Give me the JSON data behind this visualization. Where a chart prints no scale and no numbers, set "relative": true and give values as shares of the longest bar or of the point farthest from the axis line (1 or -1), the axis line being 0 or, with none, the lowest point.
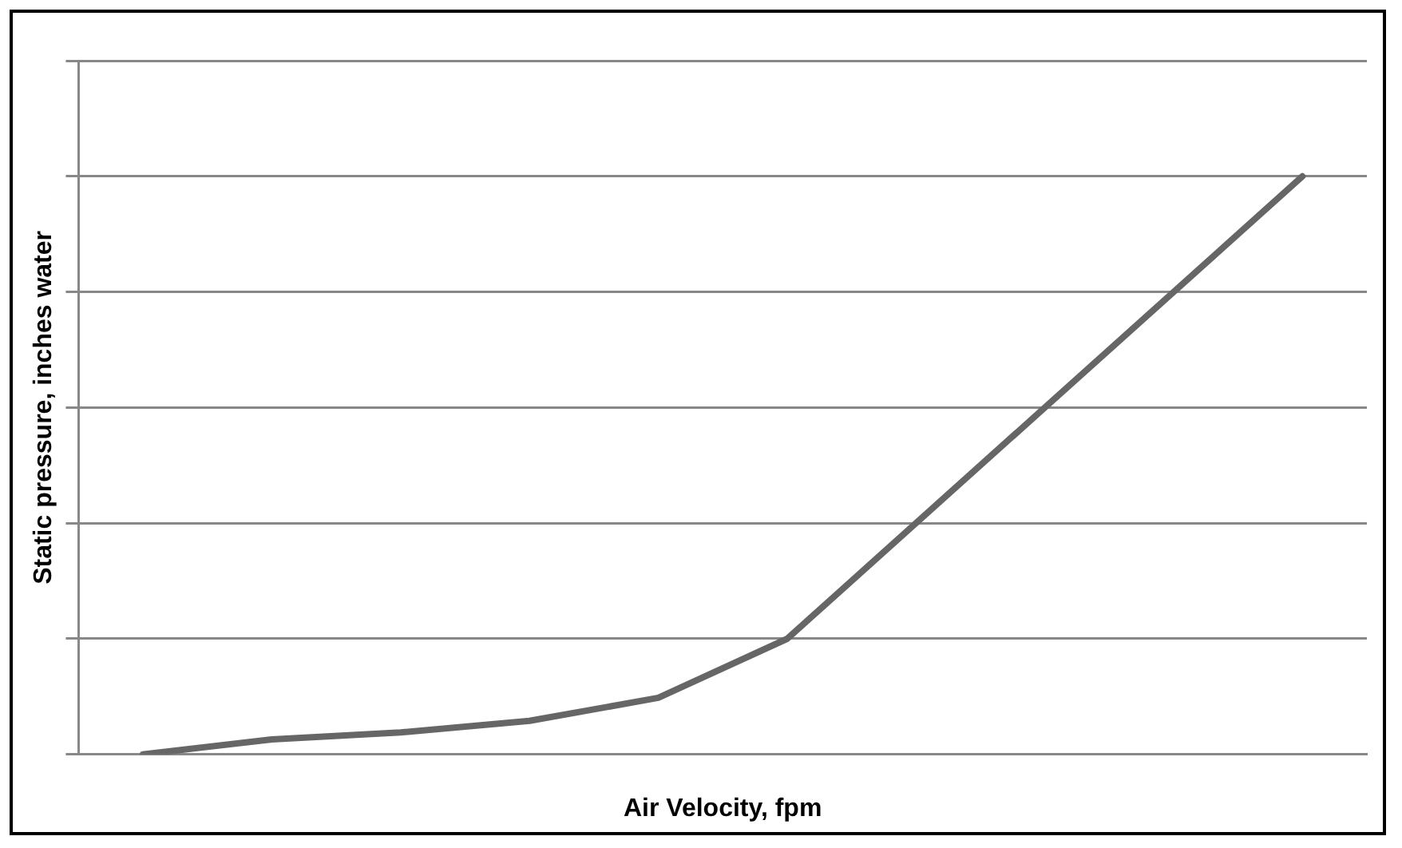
{
  "chart_data": {
    "type": "line",
    "relative": true,
    "xlabel": "Air Velocity, fpm",
    "ylabel": "Static pressure, inches water",
    "categories": [
      null,
      null,
      null,
      null,
      null,
      null,
      null,
      null,
      null,
      null
    ],
    "series": [
      {
        "color": "#666666",
        "values": [
          0,
          0.026,
          0.038,
          0.058,
          0.098,
          0.2,
          null,
          null,
          null,
          1
        ]
      }
    ],
    "grid": "y",
    "legend": false,
    "marker": "none",
    "line_style": "solid"
  }
}
